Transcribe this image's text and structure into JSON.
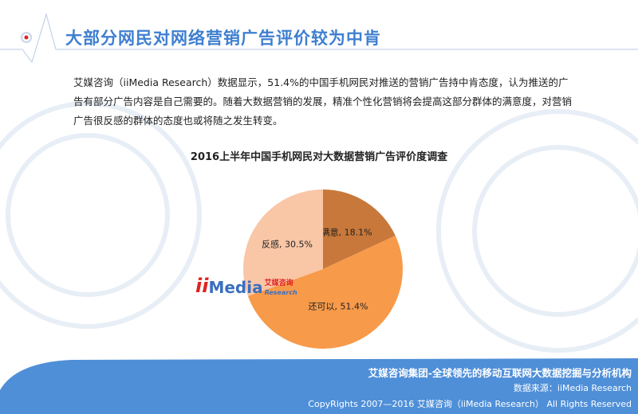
{
  "header": {
    "title": "大部分网民对网络营销广告评价较为中肯"
  },
  "body": {
    "paragraph": "艾媒咨询（iiMedia Research）数据显示，51.4%的中国手机网民对推送的营销广告持中肯态度，认为推送的广告有部分广告内容是自己需要的。随着大数据营销的发展，精准个性化营销将会提高这部分群体的满意度，对营销广告很反感的群体的态度也或将随之发生转变。"
  },
  "chart_data": {
    "type": "pie",
    "title": "2016上半年中国手机网民对大数据营销广告评价度调查",
    "categories": [
      "满意",
      "还可以",
      "反感"
    ],
    "values": [
      18.1,
      51.4,
      30.5
    ],
    "labels": [
      "满意, 18.1%",
      "还可以, 51.4%",
      "反感, 30.5%"
    ],
    "colors": [
      "#c8783a",
      "#f79a4a",
      "#f9c6a6"
    ],
    "start": "top",
    "direction": "clockwise"
  },
  "logo": {
    "ii": "ii",
    "media": "Media",
    "cn": "艾媒咨询",
    "en": "Research"
  },
  "footer": {
    "tagline": "艾媒咨询集团-全球领先的移动互联网大数据挖掘与分析机构",
    "source": "数据来源：iiMedia Research",
    "copyright": "CopyRights 2007—2016 艾媒咨询（iiMedia Research） All Rights Reserved",
    "color": "#4f8fd8"
  }
}
